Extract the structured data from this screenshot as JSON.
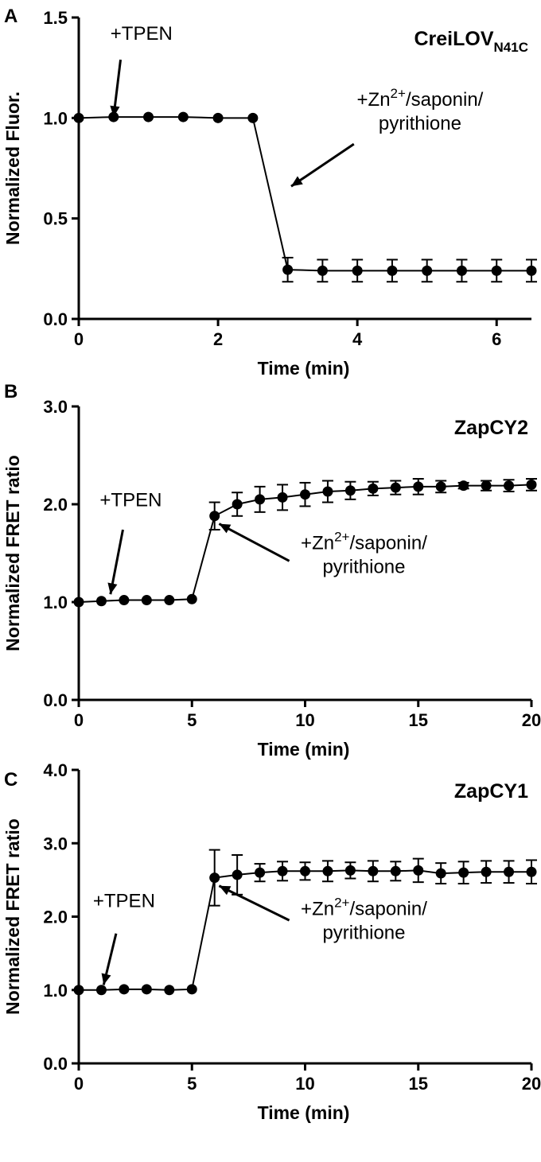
{
  "chart_data": [
    {
      "type": "line",
      "panel": "A",
      "sensor_name": "CreiLOV",
      "sensor_subscript": "N41C",
      "xlabel": "Time (min)",
      "ylabel": "Normalized Fluor.",
      "xlim": [
        0,
        6.5
      ],
      "ylim": [
        0,
        1.5
      ],
      "x_ticks": [
        0,
        2,
        4,
        6
      ],
      "x_tick_labels": [
        "0",
        "2",
        "4",
        "6"
      ],
      "y_ticks": [
        0,
        0.5,
        1.0,
        1.5
      ],
      "y_tick_labels": [
        "0.0",
        "0.5",
        "1.0",
        "1.5"
      ],
      "x": [
        0,
        0.5,
        1,
        1.5,
        2,
        2.5,
        3,
        3.5,
        4,
        4.5,
        5,
        5.5,
        6,
        6.5
      ],
      "y": [
        1.0,
        1.005,
        1.005,
        1.005,
        1.0,
        1.0,
        0.245,
        0.24,
        0.24,
        0.24,
        0.24,
        0.24,
        0.24,
        0.24
      ],
      "error": [
        0,
        0,
        0,
        0,
        0,
        0,
        0.06,
        0.055,
        0.055,
        0.055,
        0.055,
        0.055,
        0.055,
        0.055
      ],
      "annotations": [
        {
          "text": "+TPEN",
          "at": [
            0.5,
            1.005
          ],
          "label": [
            0.9,
            1.39
          ],
          "tail": [
            0.6,
            1.29
          ]
        },
        {
          "lines": [
            "+Zn",
            "/saponin/",
            "pyrithione"
          ],
          "sup": "2+",
          "at": [
            3.05,
            0.66
          ],
          "label": [
            4.9,
            1.06
          ],
          "tail": [
            3.95,
            0.87
          ]
        }
      ]
    },
    {
      "type": "line",
      "panel": "B",
      "sensor_name": "ZapCY2",
      "xlabel": "Time (min)",
      "ylabel": "Normalized FRET ratio",
      "xlim": [
        0,
        20
      ],
      "ylim": [
        0,
        3.0
      ],
      "x_ticks": [
        0,
        5,
        10,
        15,
        20
      ],
      "x_tick_labels": [
        "0",
        "5",
        "10",
        "15",
        "20"
      ],
      "y_ticks": [
        0,
        1.0,
        2.0,
        3.0
      ],
      "y_tick_labels": [
        "0.0",
        "1.0",
        "2.0",
        "3.0"
      ],
      "x": [
        0,
        1,
        2,
        3,
        4,
        5,
        6,
        7,
        8,
        9,
        10,
        11,
        12,
        13,
        14,
        15,
        16,
        17,
        18,
        19,
        20
      ],
      "y": [
        1.0,
        1.01,
        1.02,
        1.02,
        1.02,
        1.03,
        1.88,
        2.0,
        2.05,
        2.07,
        2.1,
        2.13,
        2.14,
        2.16,
        2.17,
        2.18,
        2.18,
        2.19,
        2.19,
        2.19,
        2.2
      ],
      "error": [
        0,
        0,
        0,
        0,
        0,
        0,
        0.14,
        0.12,
        0.13,
        0.13,
        0.12,
        0.11,
        0.09,
        0.07,
        0.07,
        0.08,
        0.06,
        0.03,
        0.05,
        0.06,
        0.06
      ],
      "annotations": [
        {
          "text": "+TPEN",
          "at": [
            1.4,
            1.08
          ],
          "label": [
            2.3,
            1.98
          ],
          "tail": [
            1.95,
            1.74
          ]
        },
        {
          "lines": [
            "+Zn",
            "/saponin/",
            "pyrithione"
          ],
          "sup": "2+",
          "at": [
            6.2,
            1.8
          ],
          "label": [
            12.6,
            1.54
          ],
          "tail": [
            9.3,
            1.42
          ]
        }
      ]
    },
    {
      "type": "line",
      "panel": "C",
      "sensor_name": "ZapCY1",
      "xlabel": "Time (min)",
      "ylabel": "Normalized FRET ratio",
      "xlim": [
        0,
        20
      ],
      "ylim": [
        0,
        4.0
      ],
      "x_ticks": [
        0,
        5,
        10,
        15,
        20
      ],
      "x_tick_labels": [
        "0",
        "5",
        "10",
        "15",
        "20"
      ],
      "y_ticks": [
        0,
        1.0,
        2.0,
        3.0,
        4.0
      ],
      "y_tick_labels": [
        "0.0",
        "1.0",
        "2.0",
        "3.0",
        "4.0"
      ],
      "x": [
        0,
        1,
        2,
        3,
        4,
        5,
        6,
        7,
        8,
        9,
        10,
        11,
        12,
        13,
        14,
        15,
        16,
        17,
        18,
        19,
        20
      ],
      "y": [
        1.0,
        1.0,
        1.01,
        1.01,
        1.0,
        1.01,
        2.53,
        2.57,
        2.6,
        2.62,
        2.62,
        2.62,
        2.63,
        2.62,
        2.62,
        2.63,
        2.59,
        2.6,
        2.61,
        2.61,
        2.61
      ],
      "error": [
        0,
        0,
        0,
        0,
        0,
        0,
        0.38,
        0.27,
        0.12,
        0.13,
        0.12,
        0.14,
        0.11,
        0.14,
        0.13,
        0.16,
        0.14,
        0.15,
        0.15,
        0.15,
        0.16
      ],
      "annotations": [
        {
          "text": "+TPEN",
          "at": [
            1.1,
            1.07
          ],
          "label": [
            2.0,
            2.13
          ],
          "tail": [
            1.65,
            1.77
          ]
        },
        {
          "lines": [
            "+Zn",
            "/saponin/",
            "pyrithione"
          ],
          "sup": "2+",
          "at": [
            6.2,
            2.42
          ],
          "label": [
            12.6,
            2.02
          ],
          "tail": [
            9.3,
            1.95
          ]
        }
      ]
    }
  ]
}
